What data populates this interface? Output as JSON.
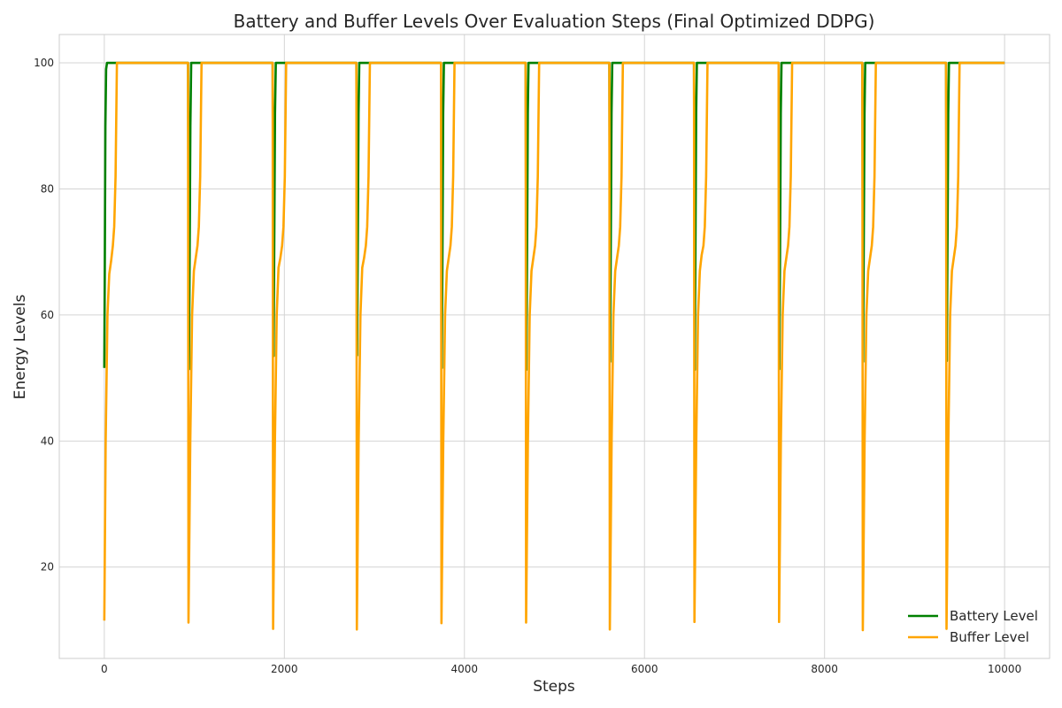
{
  "chart_data": {
    "type": "line",
    "title": "Battery and Buffer Levels Over Evaluation Steps (Final Optimized DDPG)",
    "xlabel": "Steps",
    "ylabel": "Energy Levels",
    "xlim": [
      -500,
      10500
    ],
    "ylim": [
      5.5,
      104.5
    ],
    "xticks": [
      0,
      2000,
      4000,
      6000,
      8000,
      10000
    ],
    "yticks": [
      20,
      40,
      60,
      80,
      100
    ],
    "grid": true,
    "legend_position": "bottom-right",
    "series": [
      {
        "name": "Battery Level",
        "color": "#008000",
        "points": [
          [
            0,
            51.6
          ],
          [
            5,
            66
          ],
          [
            12,
            90
          ],
          [
            20,
            99
          ],
          [
            30,
            100
          ],
          [
            930,
            100
          ],
          [
            940,
            51.4
          ],
          [
            948,
            70
          ],
          [
            956,
            90
          ],
          [
            965,
            100
          ],
          [
            1870,
            100
          ],
          [
            1880,
            53.5
          ],
          [
            1888,
            72
          ],
          [
            1896,
            92
          ],
          [
            1905,
            100
          ],
          [
            2800,
            100
          ],
          [
            2808,
            53.6
          ],
          [
            2816,
            72
          ],
          [
            2824,
            92
          ],
          [
            2832,
            100
          ],
          [
            3740,
            100
          ],
          [
            3748,
            51.6
          ],
          [
            3756,
            70
          ],
          [
            3764,
            92
          ],
          [
            3772,
            100
          ],
          [
            4680,
            100
          ],
          [
            4688,
            51.3
          ],
          [
            4696,
            70
          ],
          [
            4704,
            92
          ],
          [
            4712,
            100
          ],
          [
            5610,
            100
          ],
          [
            5618,
            52.6
          ],
          [
            5626,
            72
          ],
          [
            5634,
            92
          ],
          [
            5642,
            100
          ],
          [
            6550,
            100
          ],
          [
            6558,
            51.3
          ],
          [
            6566,
            70
          ],
          [
            6574,
            92
          ],
          [
            6582,
            100
          ],
          [
            7490,
            100
          ],
          [
            7498,
            51.4
          ],
          [
            7506,
            70
          ],
          [
            7514,
            92
          ],
          [
            7522,
            100
          ],
          [
            8420,
            100
          ],
          [
            8428,
            52.6
          ],
          [
            8436,
            72
          ],
          [
            8444,
            92
          ],
          [
            8452,
            100
          ],
          [
            9350,
            100
          ],
          [
            9358,
            52.7
          ],
          [
            9366,
            72
          ],
          [
            9374,
            92
          ],
          [
            9382,
            100
          ],
          [
            10000,
            100
          ]
        ]
      },
      {
        "name": "Buffer Level",
        "color": "#FFA500",
        "points": [
          [
            0,
            11.5
          ],
          [
            15,
            40
          ],
          [
            35,
            60
          ],
          [
            55,
            66.5
          ],
          [
            75,
            68.5
          ],
          [
            95,
            71
          ],
          [
            110,
            74
          ],
          [
            125,
            82
          ],
          [
            140,
            100
          ],
          [
            930,
            100
          ],
          [
            935,
            11.2
          ],
          [
            955,
            40
          ],
          [
            975,
            60
          ],
          [
            995,
            67
          ],
          [
            1015,
            69
          ],
          [
            1035,
            71
          ],
          [
            1050,
            74
          ],
          [
            1065,
            82
          ],
          [
            1080,
            100
          ],
          [
            1870,
            100
          ],
          [
            1875,
            10.2
          ],
          [
            1895,
            40
          ],
          [
            1915,
            60
          ],
          [
            1935,
            67.5
          ],
          [
            1955,
            69
          ],
          [
            1975,
            71
          ],
          [
            1990,
            74
          ],
          [
            2005,
            82
          ],
          [
            2020,
            100
          ],
          [
            2800,
            100
          ],
          [
            2805,
            10.1
          ],
          [
            2825,
            40
          ],
          [
            2845,
            60
          ],
          [
            2865,
            67.5
          ],
          [
            2885,
            69
          ],
          [
            2905,
            71
          ],
          [
            2920,
            74
          ],
          [
            2935,
            82
          ],
          [
            2950,
            100
          ],
          [
            3740,
            100
          ],
          [
            3745,
            11.1
          ],
          [
            3765,
            40
          ],
          [
            3785,
            60
          ],
          [
            3805,
            67
          ],
          [
            3825,
            69
          ],
          [
            3845,
            71
          ],
          [
            3860,
            74
          ],
          [
            3875,
            82
          ],
          [
            3890,
            100
          ],
          [
            4680,
            100
          ],
          [
            4685,
            11.2
          ],
          [
            4705,
            40
          ],
          [
            4725,
            60
          ],
          [
            4745,
            67
          ],
          [
            4765,
            69
          ],
          [
            4785,
            71
          ],
          [
            4800,
            74
          ],
          [
            4815,
            82
          ],
          [
            4830,
            100
          ],
          [
            5610,
            100
          ],
          [
            5615,
            10.1
          ],
          [
            5635,
            40
          ],
          [
            5655,
            60
          ],
          [
            5675,
            67
          ],
          [
            5695,
            69
          ],
          [
            5715,
            71
          ],
          [
            5730,
            74
          ],
          [
            5745,
            82
          ],
          [
            5760,
            100
          ],
          [
            6550,
            100
          ],
          [
            6555,
            11.3
          ],
          [
            6575,
            40
          ],
          [
            6595,
            60
          ],
          [
            6615,
            67
          ],
          [
            6635,
            69.5
          ],
          [
            6655,
            71
          ],
          [
            6670,
            74
          ],
          [
            6685,
            82
          ],
          [
            6700,
            100
          ],
          [
            7490,
            100
          ],
          [
            7495,
            11.3
          ],
          [
            7515,
            40
          ],
          [
            7535,
            60
          ],
          [
            7555,
            67
          ],
          [
            7575,
            69
          ],
          [
            7595,
            71
          ],
          [
            7610,
            74
          ],
          [
            7625,
            82
          ],
          [
            7640,
            100
          ],
          [
            8420,
            100
          ],
          [
            8425,
            10.0
          ],
          [
            8445,
            40
          ],
          [
            8465,
            60
          ],
          [
            8485,
            67
          ],
          [
            8505,
            69
          ],
          [
            8525,
            71
          ],
          [
            8540,
            74
          ],
          [
            8555,
            82
          ],
          [
            8570,
            100
          ],
          [
            9350,
            100
          ],
          [
            9355,
            10.2
          ],
          [
            9375,
            40
          ],
          [
            9395,
            60
          ],
          [
            9415,
            67
          ],
          [
            9435,
            69
          ],
          [
            9455,
            71
          ],
          [
            9470,
            74
          ],
          [
            9485,
            82
          ],
          [
            9500,
            100
          ],
          [
            10000,
            100
          ]
        ]
      }
    ]
  }
}
